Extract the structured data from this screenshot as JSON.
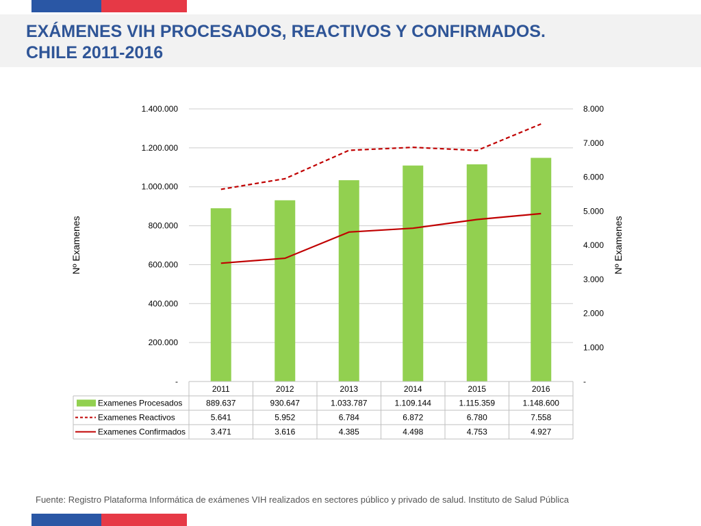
{
  "title": {
    "line1": "EXÁMENES VIH PROCESADOS, REACTIVOS Y CONFIRMADOS.",
    "line2": "CHILE 2011-2016"
  },
  "source": "Fuente: Registro Plataforma Informática de exámenes VIH realizados en sectores público y privado de salud. Instituto de Salud Pública",
  "colors": {
    "flag_blue": "#2a57a5",
    "flag_red": "#e63946",
    "title": "#2f5597",
    "bar": "#92d050",
    "line": "#c00000"
  },
  "chart_data": {
    "type": "bar",
    "categories": [
      "2011",
      "2012",
      "2013",
      "2014",
      "2015",
      "2016"
    ],
    "series": [
      {
        "name": "Examenes Procesados",
        "kind": "bar",
        "axis": "left",
        "values": [
          889637,
          930647,
          1033787,
          1109144,
          1115359,
          1148600
        ],
        "labels": [
          "889.637",
          "930.647",
          "1.033.787",
          "1.109.144",
          "1.115.359",
          "1.148.600"
        ]
      },
      {
        "name": "Examenes Reactivos",
        "kind": "line-dashed",
        "axis": "right",
        "values": [
          5641,
          5952,
          6784,
          6872,
          6780,
          7558
        ],
        "labels": [
          "5.641",
          "5.952",
          "6.784",
          "6.872",
          "6.780",
          "7.558"
        ]
      },
      {
        "name": "Examenes Confirmados",
        "kind": "line",
        "axis": "right",
        "values": [
          3471,
          3616,
          4385,
          4498,
          4753,
          4927
        ],
        "labels": [
          "3.471",
          "3.616",
          "4.385",
          "4.498",
          "4.753",
          "4.927"
        ]
      }
    ],
    "ylabel": "Nº Examenes",
    "y2label": "Nº Examenes",
    "ylim": [
      0,
      1400000
    ],
    "y2lim": [
      0,
      8000
    ],
    "yticks": [
      {
        "value": 0,
        "label": "-"
      },
      {
        "value": 200000,
        "label": "200.000"
      },
      {
        "value": 400000,
        "label": "400.000"
      },
      {
        "value": 600000,
        "label": "600.000"
      },
      {
        "value": 800000,
        "label": "800.000"
      },
      {
        "value": 1000000,
        "label": "1.000.000"
      },
      {
        "value": 1200000,
        "label": "1.200.000"
      },
      {
        "value": 1400000,
        "label": "1.400.000"
      }
    ],
    "y2ticks": [
      {
        "value": 0,
        "label": "-"
      },
      {
        "value": 1000,
        "label": "1.000"
      },
      {
        "value": 2000,
        "label": "2.000"
      },
      {
        "value": 3000,
        "label": "3.000"
      },
      {
        "value": 4000,
        "label": "4.000"
      },
      {
        "value": 5000,
        "label": "5.000"
      },
      {
        "value": 6000,
        "label": "6.000"
      },
      {
        "value": 7000,
        "label": "7.000"
      },
      {
        "value": 8000,
        "label": "8.000"
      }
    ],
    "grid": true,
    "legend": "data-table"
  }
}
